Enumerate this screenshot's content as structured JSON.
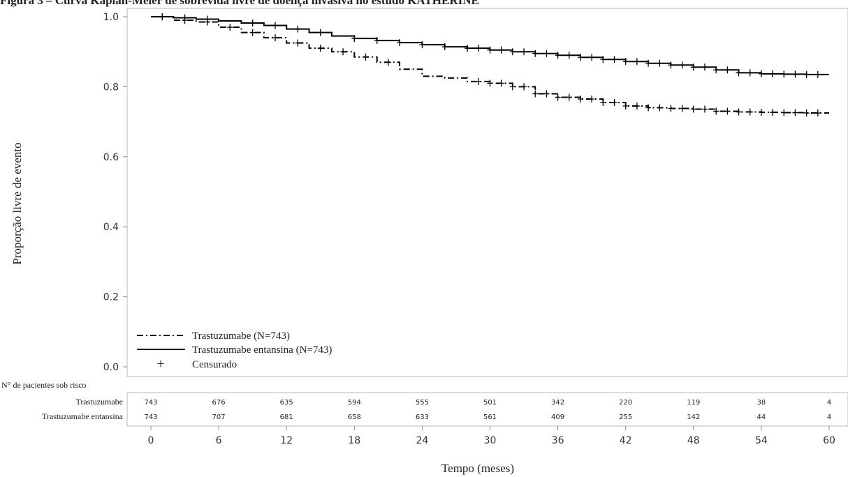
{
  "figure_caption": "Figura 3 – Curva Kaplan-Meier de sobrevida livre de doença invasiva no estudo KATHERINE",
  "colors": {
    "line": "#000000",
    "frame": "#b8b8b8",
    "text": "#222222"
  },
  "chart_data": {
    "type": "line",
    "title": "",
    "xlabel": "Tempo (meses)",
    "ylabel": "Proporção livre de evento",
    "xlim": [
      0,
      60
    ],
    "ylim": [
      0,
      1.0
    ],
    "xticks": [
      0,
      6,
      12,
      18,
      24,
      30,
      36,
      42,
      48,
      54,
      60
    ],
    "yticks": [
      0.0,
      0.2,
      0.4,
      0.6,
      0.8,
      1.0
    ],
    "ytick_labels": [
      "0.0",
      "0.2",
      "0.4",
      "0.6",
      "0.8",
      "1.0"
    ],
    "grid": false,
    "legend_position": "bottom-left",
    "legend": [
      {
        "label": "Trastuzumabe (N=743)",
        "style": "dash-dot"
      },
      {
        "label": "Trastuzumabe entansina (N=743)",
        "style": "solid"
      },
      {
        "label": "Censurado",
        "style": "censor-mark"
      }
    ],
    "series": [
      {
        "name": "Trastuzumabe (N=743)",
        "style": "dash-dot",
        "x": [
          0,
          2,
          4,
          6,
          8,
          10,
          12,
          14,
          16,
          18,
          20,
          22,
          24,
          26,
          28,
          30,
          32,
          34,
          36,
          38,
          40,
          42,
          44,
          46,
          48,
          50,
          52,
          54,
          56,
          58,
          60
        ],
        "y": [
          1.0,
          0.99,
          0.985,
          0.97,
          0.955,
          0.94,
          0.925,
          0.91,
          0.9,
          0.885,
          0.87,
          0.85,
          0.83,
          0.825,
          0.815,
          0.81,
          0.8,
          0.78,
          0.77,
          0.765,
          0.755,
          0.745,
          0.74,
          0.738,
          0.736,
          0.73,
          0.728,
          0.727,
          0.726,
          0.725,
          0.725
        ],
        "censor_x": [
          1,
          3,
          5,
          7,
          9,
          11,
          13,
          15,
          17,
          19,
          21,
          29,
          30,
          31,
          32,
          33,
          34,
          35,
          36,
          37,
          38,
          39,
          40,
          41,
          42,
          43,
          44,
          45,
          46,
          47,
          48,
          49,
          50,
          51,
          52,
          53,
          54,
          55,
          56,
          57,
          58,
          59
        ]
      },
      {
        "name": "Trastuzumabe entansina (N=743)",
        "style": "solid",
        "x": [
          0,
          2,
          4,
          6,
          8,
          10,
          12,
          14,
          16,
          18,
          20,
          22,
          24,
          26,
          28,
          30,
          32,
          34,
          36,
          38,
          40,
          42,
          44,
          46,
          48,
          50,
          52,
          54,
          56,
          58,
          60
        ],
        "y": [
          1.0,
          0.997,
          0.993,
          0.988,
          0.982,
          0.975,
          0.965,
          0.955,
          0.945,
          0.938,
          0.932,
          0.926,
          0.92,
          0.914,
          0.91,
          0.905,
          0.9,
          0.895,
          0.89,
          0.884,
          0.878,
          0.872,
          0.867,
          0.862,
          0.856,
          0.848,
          0.84,
          0.837,
          0.836,
          0.835,
          0.835
        ],
        "censor_x": [
          1,
          3,
          5,
          9,
          11,
          13,
          15,
          18,
          20,
          22,
          24,
          26,
          28,
          29,
          30,
          31,
          32,
          33,
          34,
          35,
          36,
          37,
          38,
          39,
          40,
          41,
          42,
          43,
          44,
          45,
          46,
          47,
          48,
          49,
          50,
          51,
          52,
          53,
          54,
          55,
          56,
          57,
          58,
          59
        ]
      }
    ],
    "risk_table": {
      "header": "N° de pacientes sob risco",
      "rows": [
        {
          "label": "Trastuzumabe",
          "values": [
            "743",
            "676",
            "635",
            "594",
            "555",
            "501",
            "342",
            "220",
            "119",
            "38",
            "4"
          ]
        },
        {
          "label": "Trastuzumabe entansina",
          "values": [
            "743",
            "707",
            "681",
            "658",
            "633",
            "561",
            "409",
            "255",
            "142",
            "44",
            "4"
          ]
        }
      ]
    }
  }
}
